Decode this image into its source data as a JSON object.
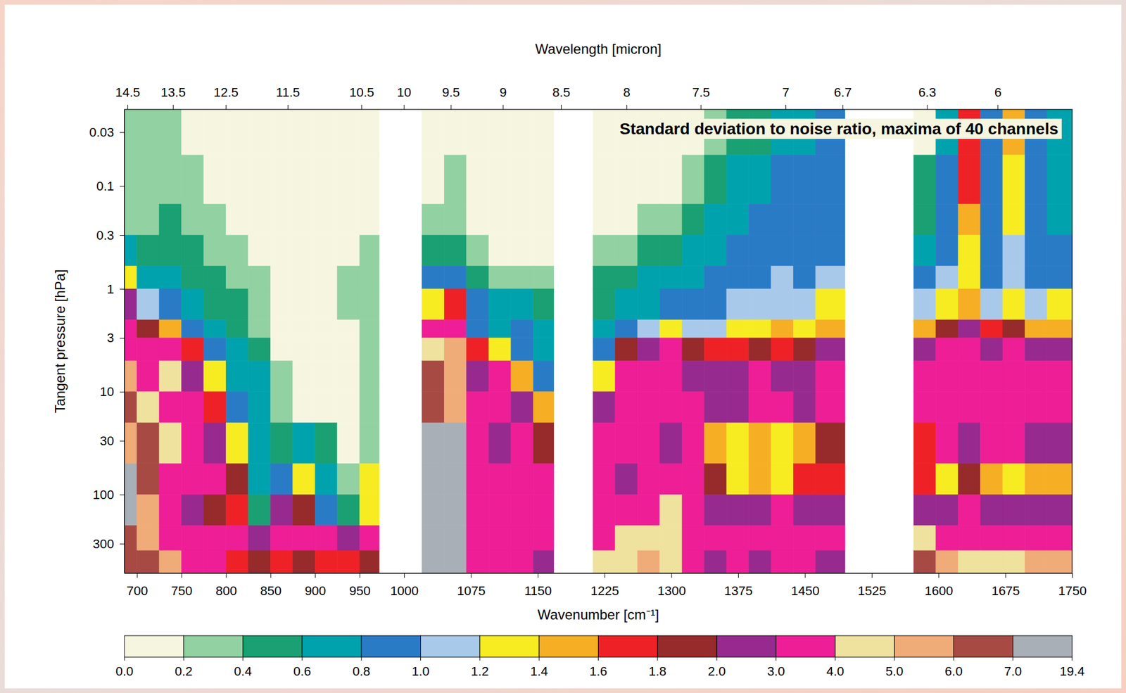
{
  "chart_data": {
    "type": "heatmap",
    "title": "Standard deviation to noise ratio, maxima of 40 channels",
    "xlabel": "Wavenumber [cm⁻¹]",
    "x2label": "Wavelength [micron]",
    "ylabel": "Tangent pressure [hPa]",
    "xlim": [
      686,
      1750
    ],
    "xticks": [
      700,
      750,
      800,
      850,
      900,
      950,
      1000,
      1075,
      1150,
      1225,
      1300,
      1375,
      1450,
      1525,
      1600,
      1675,
      1750
    ],
    "x2ticks": [
      14.5,
      13.5,
      12.5,
      11.5,
      10.5,
      10,
      9.5,
      9,
      8.5,
      8,
      7.5,
      7,
      6.7,
      6.3,
      6
    ],
    "ylim": [
      0.018,
      580
    ],
    "yticks": [
      0.03,
      0.1,
      0.3,
      1,
      3,
      10,
      30,
      100,
      300
    ],
    "log": "y",
    "x_edges": [
      686,
      700,
      725,
      750,
      775,
      800,
      825,
      850,
      875,
      900,
      925,
      950,
      972,
      1020,
      1045,
      1070,
      1095,
      1120,
      1145,
      1168,
      1212,
      1237,
      1262,
      1287,
      1312,
      1337,
      1362,
      1387,
      1412,
      1437,
      1462,
      1495,
      1572,
      1597,
      1622,
      1647,
      1672,
      1697,
      1722,
      1750
    ],
    "y_edges": [
      0.018,
      0.05,
      0.15,
      0.3,
      0.6,
      1,
      2,
      3,
      5,
      10,
      20,
      50,
      100,
      200,
      350,
      580
    ],
    "cells": [
      [
        0.3,
        0.3,
        0.3,
        0.1,
        0.1,
        0.1,
        0.1,
        0.1,
        0.1,
        0.1,
        0.1,
        0.1,
        null,
        0.1,
        0.1,
        0.1,
        0.1,
        0.1,
        0.1,
        null,
        0.1,
        0.1,
        0.1,
        0.1,
        0.1,
        0.3,
        0.5,
        0.5,
        0.7,
        0.7,
        0.9,
        null,
        0.1,
        0.7,
        1.7,
        0.9,
        1.5,
        0.9,
        0.7
      ],
      [
        0.3,
        0.3,
        0.3,
        0.3,
        0.1,
        0.1,
        0.1,
        0.1,
        0.1,
        0.1,
        0.1,
        0.1,
        null,
        0.1,
        0.3,
        0.1,
        0.1,
        0.1,
        0.1,
        null,
        0.1,
        0.1,
        0.1,
        0.1,
        0.3,
        0.5,
        0.7,
        0.7,
        0.9,
        0.9,
        0.9,
        null,
        0.5,
        0.9,
        1.7,
        0.9,
        1.3,
        0.9,
        0.7
      ],
      [
        0.3,
        0.3,
        0.5,
        0.3,
        0.3,
        0.1,
        0.1,
        0.1,
        0.1,
        0.1,
        0.1,
        0.1,
        null,
        0.3,
        0.3,
        0.1,
        0.1,
        0.1,
        0.1,
        null,
        0.1,
        0.1,
        0.3,
        0.3,
        0.5,
        0.7,
        0.7,
        0.9,
        0.9,
        0.9,
        0.9,
        null,
        0.5,
        0.9,
        1.5,
        0.9,
        1.3,
        0.9,
        0.7
      ],
      [
        0.7,
        0.5,
        0.5,
        0.5,
        0.3,
        0.3,
        0.1,
        0.1,
        0.1,
        0.1,
        0.1,
        0.3,
        null,
        0.5,
        0.5,
        0.3,
        0.1,
        0.1,
        0.1,
        null,
        0.3,
        0.3,
        0.5,
        0.5,
        0.7,
        0.7,
        0.9,
        0.9,
        0.9,
        0.9,
        0.9,
        null,
        0.7,
        0.9,
        1.3,
        0.9,
        1.1,
        0.9,
        0.9
      ],
      [
        1.3,
        0.7,
        0.7,
        0.5,
        0.5,
        0.3,
        0.3,
        0.1,
        0.1,
        0.1,
        0.3,
        0.3,
        null,
        0.9,
        0.9,
        0.5,
        0.3,
        0.3,
        0.3,
        null,
        0.5,
        0.5,
        0.7,
        0.7,
        0.7,
        0.9,
        0.9,
        0.9,
        1.1,
        0.9,
        1.1,
        null,
        0.9,
        1.1,
        1.3,
        0.9,
        1.1,
        0.9,
        0.9
      ],
      [
        2.5,
        1.1,
        0.9,
        0.7,
        0.5,
        0.5,
        0.3,
        0.1,
        0.1,
        0.1,
        0.3,
        0.3,
        null,
        1.3,
        1.7,
        0.9,
        0.7,
        0.7,
        0.5,
        null,
        0.5,
        0.7,
        0.7,
        0.9,
        0.9,
        0.9,
        1.1,
        1.1,
        1.1,
        1.1,
        1.3,
        null,
        1.1,
        1.3,
        1.5,
        1.1,
        1.3,
        1.1,
        1.3
      ],
      [
        3.5,
        1.9,
        1.5,
        0.9,
        0.7,
        0.5,
        0.3,
        0.1,
        0.1,
        0.1,
        0.1,
        0.3,
        null,
        3.5,
        3.5,
        0.9,
        0.7,
        0.9,
        0.7,
        null,
        0.7,
        0.9,
        1.1,
        1.3,
        1.1,
        1.1,
        1.3,
        1.3,
        1.5,
        1.3,
        1.5,
        null,
        1.5,
        1.9,
        2.5,
        1.7,
        1.9,
        1.5,
        1.5
      ],
      [
        3.5,
        3.5,
        3.5,
        1.7,
        0.9,
        0.7,
        0.5,
        0.1,
        0.1,
        0.1,
        0.1,
        0.3,
        null,
        4.5,
        5.5,
        1.7,
        1.3,
        0.9,
        0.7,
        null,
        0.9,
        1.9,
        2.5,
        3.5,
        1.9,
        1.7,
        1.7,
        1.9,
        1.7,
        1.9,
        2.5,
        null,
        2.5,
        3.5,
        3.5,
        2.5,
        3.5,
        2.5,
        2.5
      ],
      [
        5.5,
        3.5,
        4.5,
        2.5,
        1.3,
        0.7,
        0.7,
        0.3,
        0.1,
        0.1,
        0.1,
        0.3,
        null,
        6.5,
        5.5,
        2.5,
        3.5,
        1.5,
        0.9,
        null,
        1.3,
        3.5,
        3.5,
        3.5,
        2.5,
        2.5,
        2.5,
        3.5,
        2.5,
        2.5,
        3.5,
        null,
        3.5,
        3.5,
        3.5,
        3.5,
        3.5,
        3.5,
        3.5
      ],
      [
        6.5,
        4.5,
        3.5,
        3.5,
        1.7,
        0.9,
        0.7,
        0.3,
        0.1,
        0.1,
        0.1,
        0.3,
        null,
        6.5,
        5.5,
        3.5,
        3.5,
        2.5,
        1.5,
        null,
        2.5,
        3.5,
        3.5,
        3.5,
        3.5,
        2.5,
        2.5,
        3.5,
        3.5,
        2.5,
        3.5,
        null,
        3.5,
        3.5,
        3.5,
        3.5,
        3.5,
        3.5,
        3.5
      ],
      [
        5.5,
        6.5,
        4.5,
        3.5,
        2.5,
        1.3,
        0.7,
        0.5,
        0.7,
        0.5,
        0.1,
        0.3,
        null,
        10,
        10,
        3.5,
        2.5,
        3.5,
        1.9,
        null,
        3.5,
        3.5,
        3.5,
        2.5,
        3.5,
        1.5,
        1.3,
        1.5,
        1.3,
        1.5,
        1.9,
        null,
        1.7,
        3.5,
        2.5,
        3.5,
        3.5,
        2.5,
        2.5
      ],
      [
        10,
        6.5,
        3.5,
        3.5,
        3.5,
        1.9,
        0.7,
        0.9,
        1.3,
        0.7,
        0.3,
        1.3,
        null,
        10,
        10,
        3.5,
        3.5,
        3.5,
        3.5,
        null,
        3.5,
        2.5,
        3.5,
        3.5,
        3.5,
        1.9,
        1.3,
        1.5,
        1.3,
        1.7,
        1.7,
        null,
        1.7,
        1.3,
        1.9,
        1.5,
        1.3,
        1.5,
        1.5
      ],
      [
        10,
        5.5,
        3.5,
        2.5,
        1.9,
        1.7,
        0.5,
        2.5,
        1.9,
        0.9,
        0.5,
        1.3,
        null,
        10,
        10,
        3.5,
        3.5,
        3.5,
        3.5,
        null,
        3.5,
        3.5,
        3.5,
        4.5,
        3.5,
        2.5,
        2.5,
        2.5,
        3.5,
        2.5,
        2.5,
        null,
        2.5,
        2.5,
        3.5,
        2.5,
        2.5,
        2.5,
        2.5
      ],
      [
        6.5,
        5.5,
        3.5,
        3.5,
        3.5,
        3.5,
        2.5,
        3.5,
        3.5,
        3.5,
        2.5,
        3.5,
        null,
        10,
        10,
        3.5,
        3.5,
        3.5,
        3.5,
        null,
        3.5,
        4.5,
        4.5,
        4.5,
        3.5,
        3.5,
        3.5,
        3.5,
        3.5,
        3.5,
        3.5,
        null,
        4.5,
        3.5,
        3.5,
        3.5,
        3.5,
        3.5,
        3.5
      ],
      [
        6.5,
        6.5,
        5.5,
        3.5,
        3.5,
        1.7,
        1.9,
        1.7,
        1.9,
        1.7,
        1.7,
        1.9,
        null,
        10,
        10,
        3.5,
        3.5,
        3.5,
        2.5,
        null,
        4.5,
        4.5,
        5.5,
        4.5,
        3.5,
        2.5,
        3.5,
        2.5,
        3.5,
        3.5,
        2.5,
        null,
        6.5,
        5.5,
        4.5,
        4.5,
        4.5,
        5.5,
        5.5
      ]
    ],
    "colorbar": {
      "colors": [
        "#f6f6e0",
        "#92d1a2",
        "#1aa072",
        "#00a3ad",
        "#2a7bc6",
        "#a9c9ea",
        "#f7ec22",
        "#f6ae24",
        "#ee2226",
        "#972a2a",
        "#972a8e",
        "#ee1e96",
        "#efe19e",
        "#efab78",
        "#a84a44",
        "#a9afb7"
      ],
      "ticks": [
        {
          "value": 0,
          "label": "0.0"
        },
        {
          "value": 0.2,
          "label": "0.2"
        },
        {
          "value": 0.4,
          "label": "0.4"
        },
        {
          "value": 0.6,
          "label": "0.6"
        },
        {
          "value": 0.8,
          "label": "0.8"
        },
        {
          "value": 1,
          "label": "1.0"
        },
        {
          "value": 1.2,
          "label": "1.2"
        },
        {
          "value": 1.4,
          "label": "1.4"
        },
        {
          "value": 1.6,
          "label": "1.6"
        },
        {
          "value": 1.8,
          "label": "1.8"
        },
        {
          "value": 2,
          "label": "2.0"
        },
        {
          "value": 3,
          "label": "3.0"
        },
        {
          "value": 4,
          "label": "4.0"
        },
        {
          "value": 5,
          "label": "5.0"
        },
        {
          "value": 6,
          "label": "6.0"
        },
        {
          "value": 7,
          "label": "7.0"
        },
        {
          "value": 19.4,
          "label": "19.4"
        }
      ]
    }
  }
}
